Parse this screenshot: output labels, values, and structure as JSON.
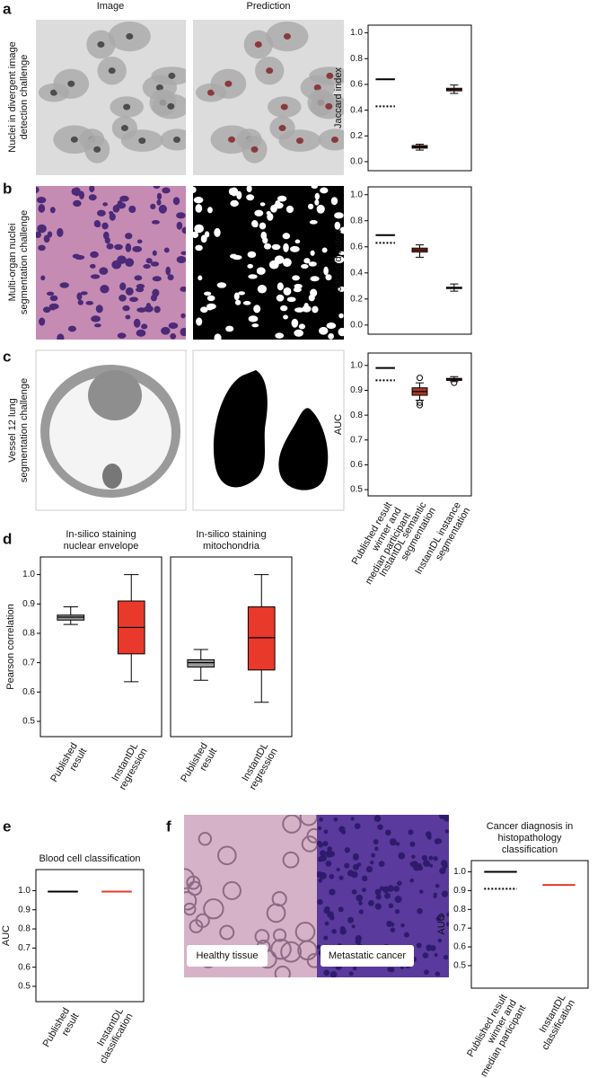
{
  "column_headers": [
    "Image",
    "Prediction"
  ],
  "panel_letters": [
    "a",
    "b",
    "c",
    "d",
    "e",
    "f"
  ],
  "image_labels": [
    "Healthy tissue",
    "Metastatic cancer"
  ],
  "chart_data": [
    {
      "type": "box",
      "row_label": [
        "Nuclei in divergent image",
        "detection challenge"
      ],
      "ylabel": "Jaccard index",
      "ylim": [
        -0.07,
        1.06
      ],
      "yticks": [
        {
          "value": 0,
          "label": "0.0"
        },
        0.2,
        0.4,
        0.6,
        0.8,
        {
          "value": 1,
          "label": "1.0"
        }
      ],
      "items": [
        {
          "winner": 0.64,
          "median": 0.43,
          "color": "#000000"
        },
        {
          "box": {
            "min": 0.09,
            "q1": 0.105,
            "median": 0.115,
            "q3": 0.125,
            "max": 0.135,
            "outliers": []
          },
          "color": "#a83a2a"
        },
        {
          "box": {
            "min": 0.53,
            "q1": 0.55,
            "median": 0.56,
            "q3": 0.57,
            "max": 0.595,
            "outliers": []
          },
          "color": "#a83a2a"
        }
      ]
    },
    {
      "type": "box",
      "row_label": [
        "Multi-organ nuclei",
        "segmentation challenge"
      ],
      "ylabel": "Jaccard index",
      "ylim": [
        -0.07,
        1.06
      ],
      "yticks": [
        {
          "value": 0,
          "label": "0.0"
        },
        0.2,
        0.4,
        0.6,
        0.8,
        {
          "value": 1,
          "label": "1.0"
        }
      ],
      "items": [
        {
          "winner": 0.69,
          "median": 0.63,
          "color": "#000000"
        },
        {
          "box": {
            "min": 0.52,
            "q1": 0.56,
            "median": 0.575,
            "q3": 0.59,
            "max": 0.615,
            "outliers": []
          },
          "color": "#a83a2a"
        },
        {
          "box": {
            "min": 0.26,
            "q1": 0.28,
            "median": 0.285,
            "q3": 0.29,
            "max": 0.315,
            "outliers": []
          },
          "color": "#a83a2a"
        }
      ]
    },
    {
      "type": "box",
      "row_label": [
        "Vessel 12 lung",
        "segmentation challenge"
      ],
      "ylabel": "AUC",
      "ylim": [
        0.475,
        1.05
      ],
      "yticks": [
        0.5,
        0.6,
        0.7,
        0.8,
        0.9,
        {
          "value": 1,
          "label": "1.0"
        }
      ],
      "categories": [
        [
          "Published result",
          "winner and",
          "median participant"
        ],
        [
          "InstantDL semantic",
          "segmentation"
        ],
        [
          "InstantDL instance",
          "segmentation"
        ]
      ],
      "items": [
        {
          "winner": 0.99,
          "median": 0.94,
          "color": "#000000"
        },
        {
          "box": {
            "min": 0.86,
            "q1": 0.88,
            "median": 0.895,
            "q3": 0.91,
            "max": 0.93,
            "outliers": [
              0.95,
              0.85,
              0.84
            ]
          },
          "color": "#a83a2a"
        },
        {
          "box": {
            "min": 0.935,
            "q1": 0.94,
            "median": 0.945,
            "q3": 0.948,
            "max": 0.955,
            "outliers": [
              0.93
            ]
          },
          "color": "#a83a2a"
        }
      ]
    },
    {
      "type": "box",
      "title": [
        "In-silico staining",
        "nuclear envelope"
      ],
      "ylabel": "Pearson correlation",
      "ylim": [
        0.448,
        1.06
      ],
      "yticks": [
        0.5,
        0.6,
        0.7,
        0.8,
        0.9,
        {
          "value": 1,
          "label": "1.0"
        }
      ],
      "categories": [
        [
          "Published",
          "result"
        ],
        [
          "InstantDL",
          "regression"
        ]
      ],
      "items": [
        {
          "box": {
            "min": 0.83,
            "q1": 0.845,
            "median": 0.855,
            "q3": 0.862,
            "max": 0.89,
            "outliers": []
          },
          "color": "#999999"
        },
        {
          "box": {
            "min": 0.635,
            "q1": 0.73,
            "median": 0.82,
            "q3": 0.91,
            "max": 1.0,
            "outliers": []
          },
          "color": "#e8392a"
        }
      ]
    },
    {
      "type": "box",
      "title": [
        "In-silico staining",
        "mitochondria"
      ],
      "ylim": [
        0.448,
        1.06
      ],
      "categories": [
        [
          "Published",
          "result"
        ],
        [
          "InstantDL",
          "regression"
        ]
      ],
      "items": [
        {
          "box": {
            "min": 0.64,
            "q1": 0.685,
            "median": 0.7,
            "q3": 0.71,
            "max": 0.745,
            "outliers": []
          },
          "color": "#999999"
        },
        {
          "box": {
            "min": 0.565,
            "q1": 0.675,
            "median": 0.785,
            "q3": 0.89,
            "max": 1.0,
            "outliers": []
          },
          "color": "#e8392a"
        }
      ]
    },
    {
      "type": "box",
      "title": [
        "Blood cell classification"
      ],
      "ylabel": "AUC",
      "ylim": [
        0.42,
        1.11
      ],
      "yticks": [
        0.5,
        0.6,
        0.7,
        0.8,
        0.9,
        {
          "value": 1,
          "label": "1.0"
        }
      ],
      "categories": [
        [
          "Published",
          "result"
        ],
        [
          "InstantDL",
          "classification"
        ]
      ],
      "items": [
        {
          "line": 0.995,
          "color": "#000000"
        },
        {
          "line": 0.995,
          "color": "#e8392a"
        }
      ]
    },
    {
      "type": "box",
      "title": [
        "Cancer diagnosis in",
        "histopathology",
        "classification"
      ],
      "ylabel": "AUC",
      "ylim": [
        0.38,
        1.06
      ],
      "yticks": [
        0.5,
        0.6,
        0.7,
        0.8,
        0.9,
        {
          "value": 1,
          "label": "1.0"
        }
      ],
      "categories": [
        [
          "Published result",
          "winner and",
          "median participant"
        ],
        [
          "InstantDL",
          "classification"
        ]
      ],
      "items": [
        {
          "winner": 1.0,
          "median": 0.91,
          "color": "#000000"
        },
        {
          "line": 0.93,
          "color": "#e8392a"
        }
      ]
    }
  ]
}
